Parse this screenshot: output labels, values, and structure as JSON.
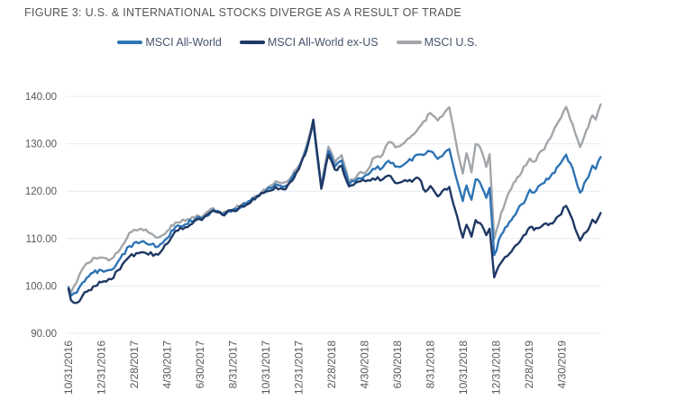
{
  "figure": {
    "label": "figure-3"
  },
  "theme": {
    "background": "#ffffff",
    "title_color": "#54565a",
    "axis_label_color": "#595959",
    "legend_text_color": "#44546a",
    "grid_color": "#e3ebf2"
  },
  "chart_data": {
    "type": "line",
    "title": "FIGURE 3: U.S. & INTERNATIONAL STOCKS DIVERGE AS A RESULT OF TRADE",
    "x_unit": "months since 10/31/2016 (indexed to 100 at start)",
    "xlim": [
      -0.2,
      32.6
    ],
    "ylim": [
      90,
      140
    ],
    "grid": "horizontal",
    "legend_position": "top",
    "y_axis": {
      "ticks": [
        {
          "v": 90,
          "label": "90.00"
        },
        {
          "v": 100,
          "label": "100.00"
        },
        {
          "v": 110,
          "label": "110.00"
        },
        {
          "v": 120,
          "label": "120.00"
        },
        {
          "v": 130,
          "label": "130.00"
        },
        {
          "v": 140,
          "label": "140.00"
        }
      ]
    },
    "x_axis": {
      "ticks": [
        {
          "m": 0,
          "label": "10/31/2016"
        },
        {
          "m": 2,
          "label": "12/31/2016"
        },
        {
          "m": 4,
          "label": "2/28/2017"
        },
        {
          "m": 6,
          "label": "4/30/2017"
        },
        {
          "m": 8,
          "label": "6/30/2017"
        },
        {
          "m": 10,
          "label": "8/31/2017"
        },
        {
          "m": 12,
          "label": "10/31/2017"
        },
        {
          "m": 14,
          "label": "12/31/2017"
        },
        {
          "m": 16,
          "label": "2/28/2018"
        },
        {
          "m": 18,
          "label": "4/30/2018"
        },
        {
          "m": 20,
          "label": "6/30/2018"
        },
        {
          "m": 22,
          "label": "8/31/2018"
        },
        {
          "m": 24,
          "label": "10/31/2018"
        },
        {
          "m": 26,
          "label": "12/31/2018"
        },
        {
          "m": 28,
          "label": "2/28/2019"
        },
        {
          "m": 30,
          "label": "4/30/2019"
        }
      ]
    },
    "series": [
      {
        "name": "MSCI All-World",
        "color": "#2e74b5",
        "points": [
          [
            0,
            99.6
          ],
          [
            0.15,
            97.9
          ],
          [
            0.5,
            98.6
          ],
          [
            0.85,
            100.7
          ],
          [
            1.5,
            102.8
          ],
          [
            2,
            103.3
          ],
          [
            2.6,
            103.4
          ],
          [
            3,
            105.1
          ],
          [
            3.7,
            108.4
          ],
          [
            4.4,
            109.3
          ],
          [
            5.45,
            108.3
          ],
          [
            6,
            110.1
          ],
          [
            6.5,
            112.4
          ],
          [
            7.1,
            113
          ],
          [
            7.8,
            114.4
          ],
          [
            8.1,
            114.1
          ],
          [
            8.8,
            116.1
          ],
          [
            9.35,
            115.1
          ],
          [
            10,
            116
          ],
          [
            10.8,
            117.3
          ],
          [
            11.6,
            119.1
          ],
          [
            12,
            120.1
          ],
          [
            12.6,
            121.5
          ],
          [
            13.2,
            121.1
          ],
          [
            14,
            124.9
          ],
          [
            14.5,
            129.4
          ],
          [
            14.88,
            134.3
          ],
          [
            15.37,
            120.7
          ],
          [
            15.8,
            128.5
          ],
          [
            16.2,
            125.2
          ],
          [
            16.6,
            126.5
          ],
          [
            17.05,
            121.4
          ],
          [
            17.6,
            122.7
          ],
          [
            18.2,
            123.5
          ],
          [
            18.5,
            124.7
          ],
          [
            19.1,
            125
          ],
          [
            19.45,
            126.4
          ],
          [
            20,
            125.2
          ],
          [
            20.6,
            126.2
          ],
          [
            21.3,
            127.7
          ],
          [
            22,
            128.4
          ],
          [
            22.45,
            126.8
          ],
          [
            23.15,
            128.9
          ],
          [
            23.65,
            121.9
          ],
          [
            23.97,
            117.9
          ],
          [
            24.2,
            121.2
          ],
          [
            24.5,
            118.2
          ],
          [
            24.75,
            122.5
          ],
          [
            25,
            121.9
          ],
          [
            25.4,
            118.6
          ],
          [
            25.6,
            120.7
          ],
          [
            25.88,
            106.5
          ],
          [
            26.3,
            110.8
          ],
          [
            26.8,
            113.5
          ],
          [
            27.3,
            116
          ],
          [
            27.8,
            118.3
          ],
          [
            28.05,
            120.3
          ],
          [
            28.3,
            119.7
          ],
          [
            28.8,
            121.6
          ],
          [
            29.3,
            123.1
          ],
          [
            29.8,
            125.4
          ],
          [
            30.25,
            127.7
          ],
          [
            30.65,
            124.8
          ],
          [
            31.1,
            119.7
          ],
          [
            31.6,
            122.9
          ],
          [
            31.85,
            125.4
          ],
          [
            32.05,
            124.7
          ],
          [
            32.35,
            127.2
          ]
        ]
      },
      {
        "name": "MSCI All-World ex-US",
        "color": "#1f3864",
        "points": [
          [
            0,
            99.4
          ],
          [
            0.15,
            97
          ],
          [
            0.5,
            96.4
          ],
          [
            0.85,
            97.9
          ],
          [
            1.5,
            99.9
          ],
          [
            2,
            100.8
          ],
          [
            2.6,
            101.4
          ],
          [
            3,
            103.3
          ],
          [
            3.7,
            106.2
          ],
          [
            4.4,
            107.1
          ],
          [
            5.45,
            106.6
          ],
          [
            6,
            108.9
          ],
          [
            6.5,
            111.6
          ],
          [
            7.1,
            112.4
          ],
          [
            7.8,
            114
          ],
          [
            8.1,
            113.9
          ],
          [
            8.8,
            115.9
          ],
          [
            9.35,
            115
          ],
          [
            10,
            115.9
          ],
          [
            10.8,
            117.1
          ],
          [
            11.6,
            119
          ],
          [
            12,
            119.9
          ],
          [
            12.6,
            120.9
          ],
          [
            13.2,
            120.4
          ],
          [
            14,
            124.6
          ],
          [
            14.5,
            129
          ],
          [
            14.88,
            135.1
          ],
          [
            15.37,
            120.5
          ],
          [
            15.8,
            127.7
          ],
          [
            16.2,
            124.5
          ],
          [
            16.6,
            125.4
          ],
          [
            17.05,
            121
          ],
          [
            17.6,
            122
          ],
          [
            18.2,
            122.3
          ],
          [
            18.5,
            122.7
          ],
          [
            19.1,
            122.5
          ],
          [
            19.45,
            123.3
          ],
          [
            20,
            121.7
          ],
          [
            20.6,
            122.1
          ],
          [
            21.3,
            122.7
          ],
          [
            21.7,
            119.9
          ],
          [
            22,
            121.1
          ],
          [
            22.45,
            118.9
          ],
          [
            23.15,
            120.9
          ],
          [
            23.65,
            114.4
          ],
          [
            23.97,
            110.2
          ],
          [
            24.2,
            112.9
          ],
          [
            24.5,
            110.4
          ],
          [
            24.75,
            113.9
          ],
          [
            25,
            113.3
          ],
          [
            25.4,
            110.7
          ],
          [
            25.6,
            112.1
          ],
          [
            25.88,
            101.8
          ],
          [
            26.3,
            104.9
          ],
          [
            26.8,
            106.8
          ],
          [
            27.3,
            108.8
          ],
          [
            27.8,
            110.9
          ],
          [
            28.05,
            112.4
          ],
          [
            28.3,
            111.8
          ],
          [
            28.8,
            112.7
          ],
          [
            29.3,
            113.2
          ],
          [
            29.8,
            114.8
          ],
          [
            30.25,
            116.9
          ],
          [
            30.65,
            113.9
          ],
          [
            31.1,
            109.6
          ],
          [
            31.6,
            111.9
          ],
          [
            31.85,
            114
          ],
          [
            32.05,
            113.3
          ],
          [
            32.35,
            115.4
          ]
        ]
      },
      {
        "name": "MSCI U.S.",
        "color": "#a2a6aa",
        "points": [
          [
            0,
            99.8
          ],
          [
            0.15,
            98.6
          ],
          [
            0.5,
            100.8
          ],
          [
            0.85,
            103.6
          ],
          [
            1.5,
            105.9
          ],
          [
            2,
            106
          ],
          [
            2.6,
            105.7
          ],
          [
            3,
            107.1
          ],
          [
            3.7,
            111.2
          ],
          [
            4.4,
            112.1
          ],
          [
            5.45,
            110.2
          ],
          [
            6,
            111.6
          ],
          [
            6.5,
            113.4
          ],
          [
            7.1,
            113.7
          ],
          [
            7.8,
            114.9
          ],
          [
            8.1,
            114.4
          ],
          [
            8.8,
            116.4
          ],
          [
            9.35,
            115.3
          ],
          [
            10,
            116.2
          ],
          [
            10.8,
            117.5
          ],
          [
            11.6,
            119.3
          ],
          [
            12,
            120.3
          ],
          [
            12.6,
            122.1
          ],
          [
            13.2,
            121.9
          ],
          [
            14,
            125.3
          ],
          [
            14.5,
            130
          ],
          [
            14.88,
            135
          ],
          [
            15.37,
            120.9
          ],
          [
            15.8,
            129.4
          ],
          [
            16.2,
            126
          ],
          [
            16.6,
            127.6
          ],
          [
            17.05,
            121.9
          ],
          [
            17.6,
            123.6
          ],
          [
            18.2,
            124.5
          ],
          [
            18.5,
            126.9
          ],
          [
            19.1,
            127.7
          ],
          [
            19.45,
            130.3
          ],
          [
            20,
            129.4
          ],
          [
            20.6,
            131
          ],
          [
            21.3,
            133.4
          ],
          [
            22,
            136.5
          ],
          [
            22.45,
            134.9
          ],
          [
            23.15,
            137.7
          ],
          [
            23.65,
            128.5
          ],
          [
            23.97,
            123.7
          ],
          [
            24.2,
            128
          ],
          [
            24.5,
            124
          ],
          [
            24.75,
            129.9
          ],
          [
            25,
            129.4
          ],
          [
            25.4,
            125.1
          ],
          [
            25.6,
            127.8
          ],
          [
            25.88,
            109.9
          ],
          [
            26.3,
            115.4
          ],
          [
            26.8,
            119.9
          ],
          [
            27.3,
            123
          ],
          [
            27.8,
            125.4
          ],
          [
            28.05,
            126.9
          ],
          [
            28.3,
            126.2
          ],
          [
            28.8,
            128.6
          ],
          [
            29.3,
            131.2
          ],
          [
            29.8,
            134.8
          ],
          [
            30.25,
            137.8
          ],
          [
            30.65,
            134.1
          ],
          [
            31.1,
            129.3
          ],
          [
            31.6,
            133.5
          ],
          [
            31.85,
            136
          ],
          [
            32.05,
            135.1
          ],
          [
            32.35,
            138.3
          ]
        ]
      }
    ]
  }
}
